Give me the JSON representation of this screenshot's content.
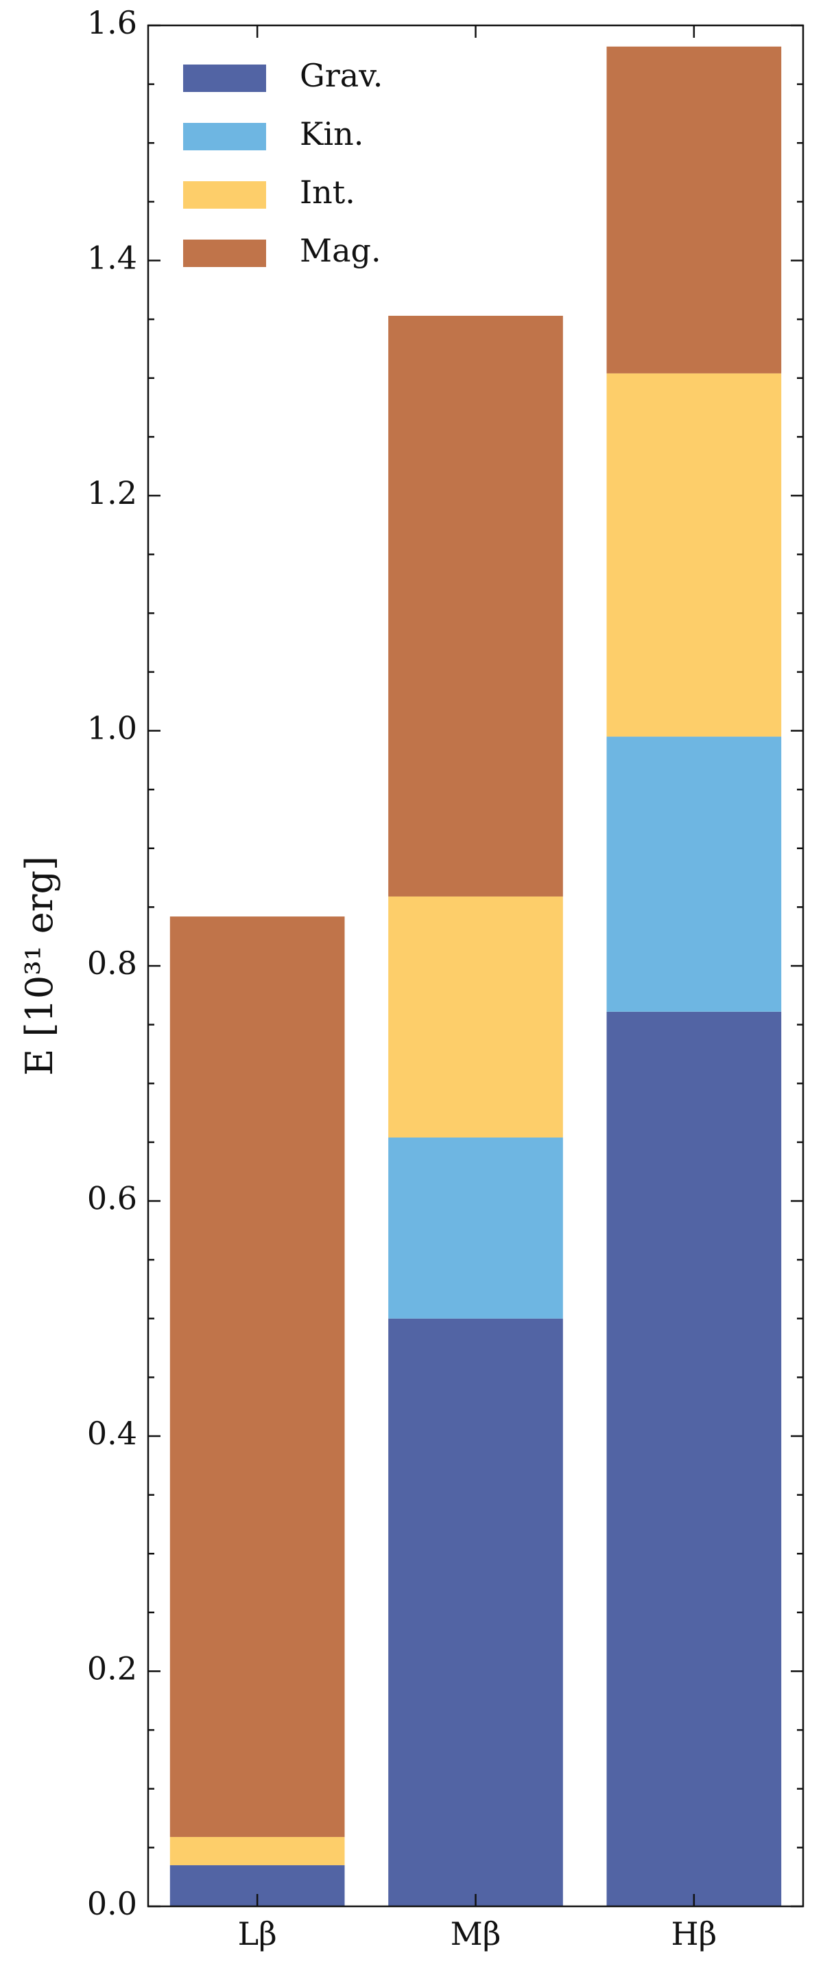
{
  "chart_data": {
    "type": "stacked-bar",
    "y_label": "E [10³¹ erg]",
    "categories": [
      "Lβ",
      "Mβ",
      "Hβ"
    ],
    "series": [
      {
        "name": "Grav.",
        "color": "#5264a4",
        "values": [
          0.035,
          0.5,
          0.761
        ]
      },
      {
        "name": "Kin.",
        "color": "#6eb6e2",
        "values": [
          0,
          0.154,
          0.234
        ]
      },
      {
        "name": "Int.",
        "color": "#fdce6a",
        "values": [
          0.024,
          0.205,
          0.309
        ]
      },
      {
        "name": "Mag.",
        "color": "#c0744a",
        "values": [
          0.783,
          0.494,
          0.278
        ]
      }
    ],
    "ylim": [
      0,
      1.6
    ],
    "yticks": [
      {
        "value": 0,
        "label": "0.0"
      },
      0.2,
      0.4,
      0.6,
      0.8,
      {
        "value": 1,
        "label": "1.0"
      },
      1.2,
      1.4,
      1.6
    ],
    "legend": "upper-left"
  }
}
